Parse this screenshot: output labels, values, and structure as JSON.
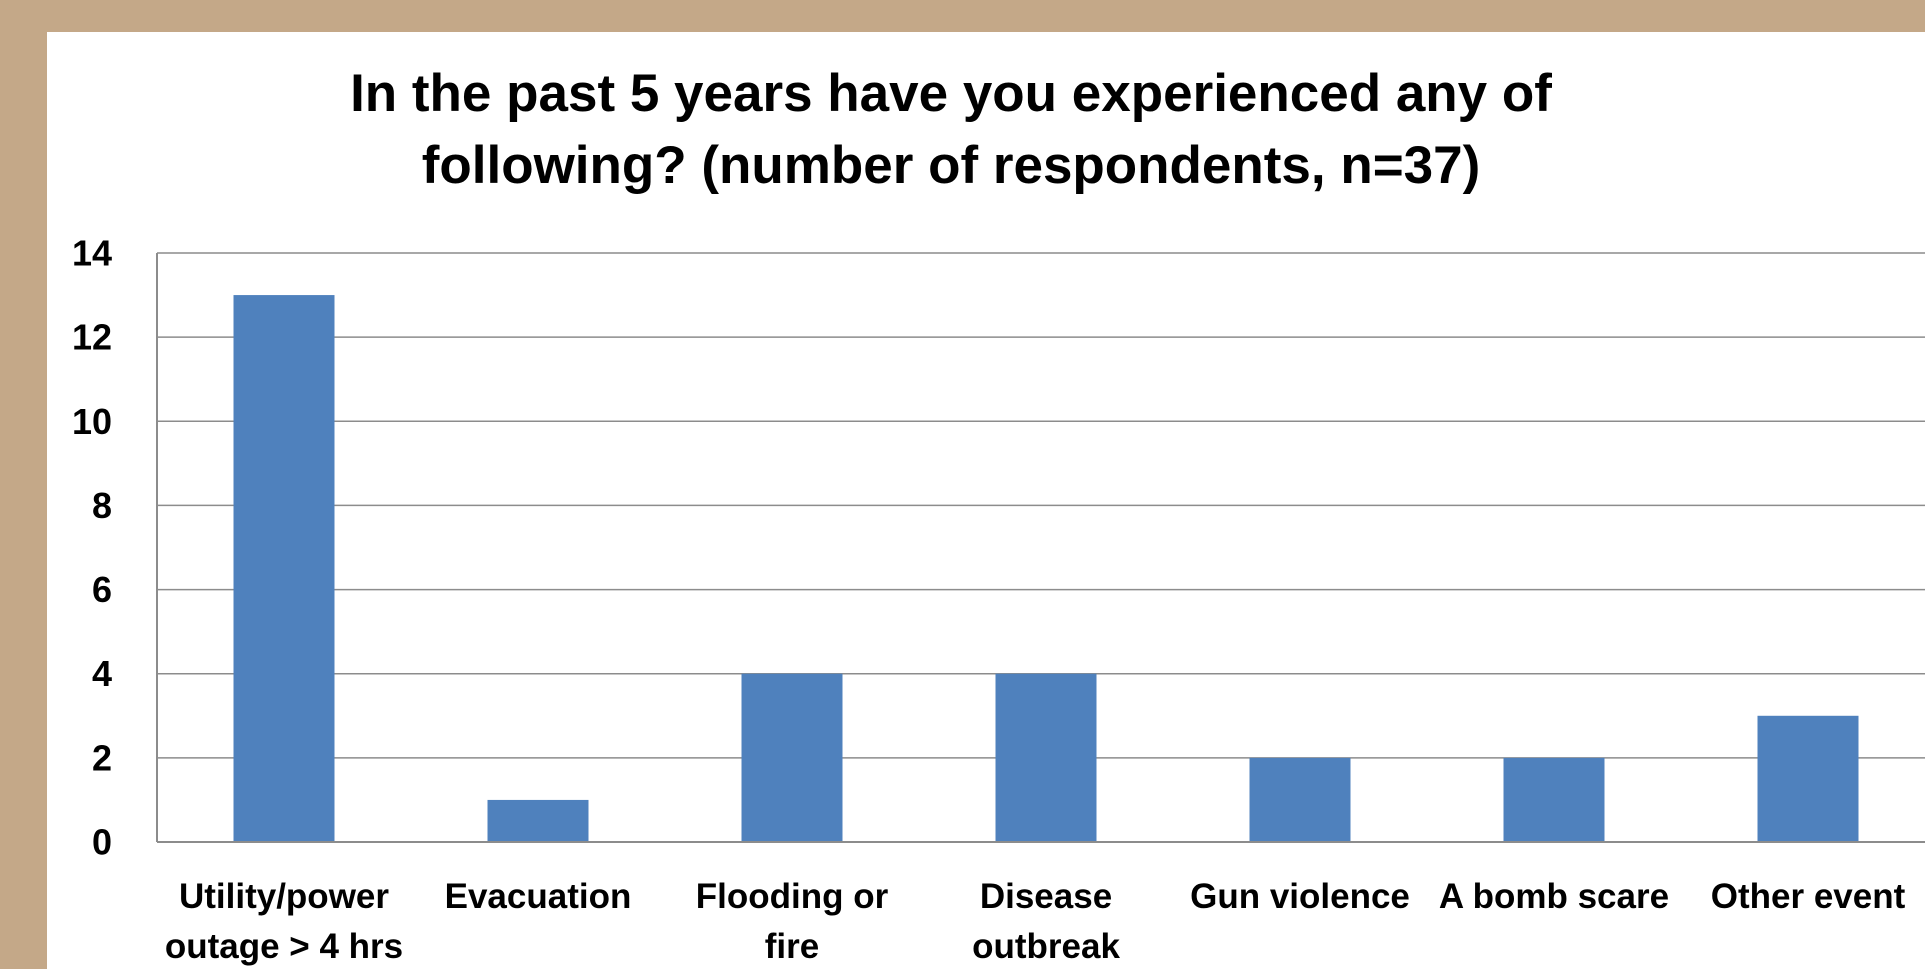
{
  "chart_data": {
    "type": "bar",
    "title_lines": [
      "In the past 5 years have you experienced any of",
      "following? (number of respondents, n=37)"
    ],
    "categories": [
      "Utility/power outage > 4 hrs",
      "Evacuation",
      "Flooding or fire",
      "Disease outbreak",
      "Gun violence",
      "A bomb scare",
      "Other event"
    ],
    "category_lines": [
      [
        "Utility/power",
        "outage > 4 hrs"
      ],
      [
        "Evacuation"
      ],
      [
        "Flooding or",
        "fire"
      ],
      [
        "Disease",
        "outbreak"
      ],
      [
        "Gun violence"
      ],
      [
        "A bomb scare"
      ],
      [
        "Other event"
      ]
    ],
    "values": [
      13,
      1,
      4,
      4,
      2,
      2,
      3
    ],
    "ylim": [
      0,
      14
    ],
    "yticks": [
      0,
      2,
      4,
      6,
      8,
      10,
      12,
      14
    ],
    "grid": true,
    "legend": "none",
    "bar_color": "#4f81bd"
  },
  "colors": {
    "background": "#c4a888",
    "panel": "#ffffff",
    "grid": "#8c8c8c"
  }
}
